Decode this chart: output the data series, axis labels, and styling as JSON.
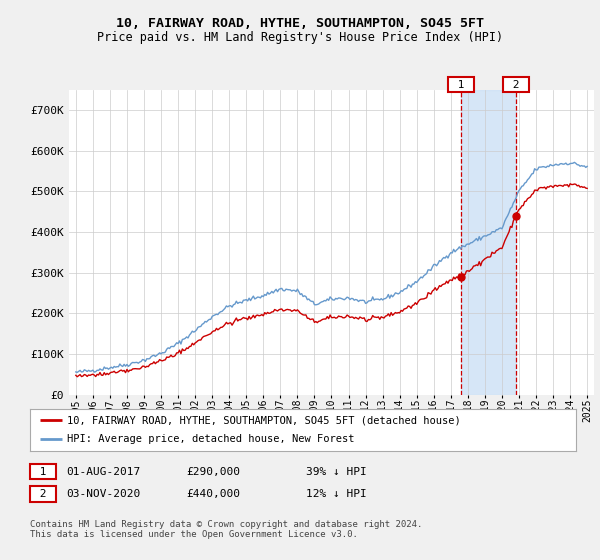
{
  "title": "10, FAIRWAY ROAD, HYTHE, SOUTHAMPTON, SO45 5FT",
  "subtitle": "Price paid vs. HM Land Registry's House Price Index (HPI)",
  "hpi_label": "HPI: Average price, detached house, New Forest",
  "price_label": "10, FAIRWAY ROAD, HYTHE, SOUTHAMPTON, SO45 5FT (detached house)",
  "annotation1": {
    "label": "1",
    "date": "01-AUG-2017",
    "price": 290000,
    "pct": "39% ↓ HPI"
  },
  "annotation2": {
    "label": "2",
    "date": "03-NOV-2020",
    "price": 440000,
    "pct": "12% ↓ HPI"
  },
  "footer": "Contains HM Land Registry data © Crown copyright and database right 2024.\nThis data is licensed under the Open Government Licence v3.0.",
  "hpi_color": "#6699cc",
  "price_color": "#cc0000",
  "shaded_color": "#cce0f5",
  "background_color": "#f0f0f0",
  "plot_bg_color": "#ffffff",
  "ylim": [
    0,
    750000
  ],
  "yticks": [
    0,
    100000,
    200000,
    300000,
    400000,
    500000,
    600000,
    700000
  ],
  "ytick_labels": [
    "£0",
    "£100K",
    "£200K",
    "£300K",
    "£400K",
    "£500K",
    "£600K",
    "£700K"
  ],
  "xstart_year": 1995,
  "xend_year": 2025,
  "hpi_annual": [
    55000,
    60000,
    67000,
    74000,
    85000,
    102000,
    126000,
    158000,
    192000,
    218000,
    232000,
    244000,
    260000,
    255000,
    222000,
    235000,
    238000,
    228000,
    235000,
    252000,
    278000,
    315000,
    350000,
    370000,
    390000,
    410000,
    500000,
    555000,
    565000,
    570000,
    560000
  ],
  "year_sale1": 2017.583,
  "year_sale2": 2020.833,
  "price_sale1": 290000,
  "price_sale2": 440000
}
